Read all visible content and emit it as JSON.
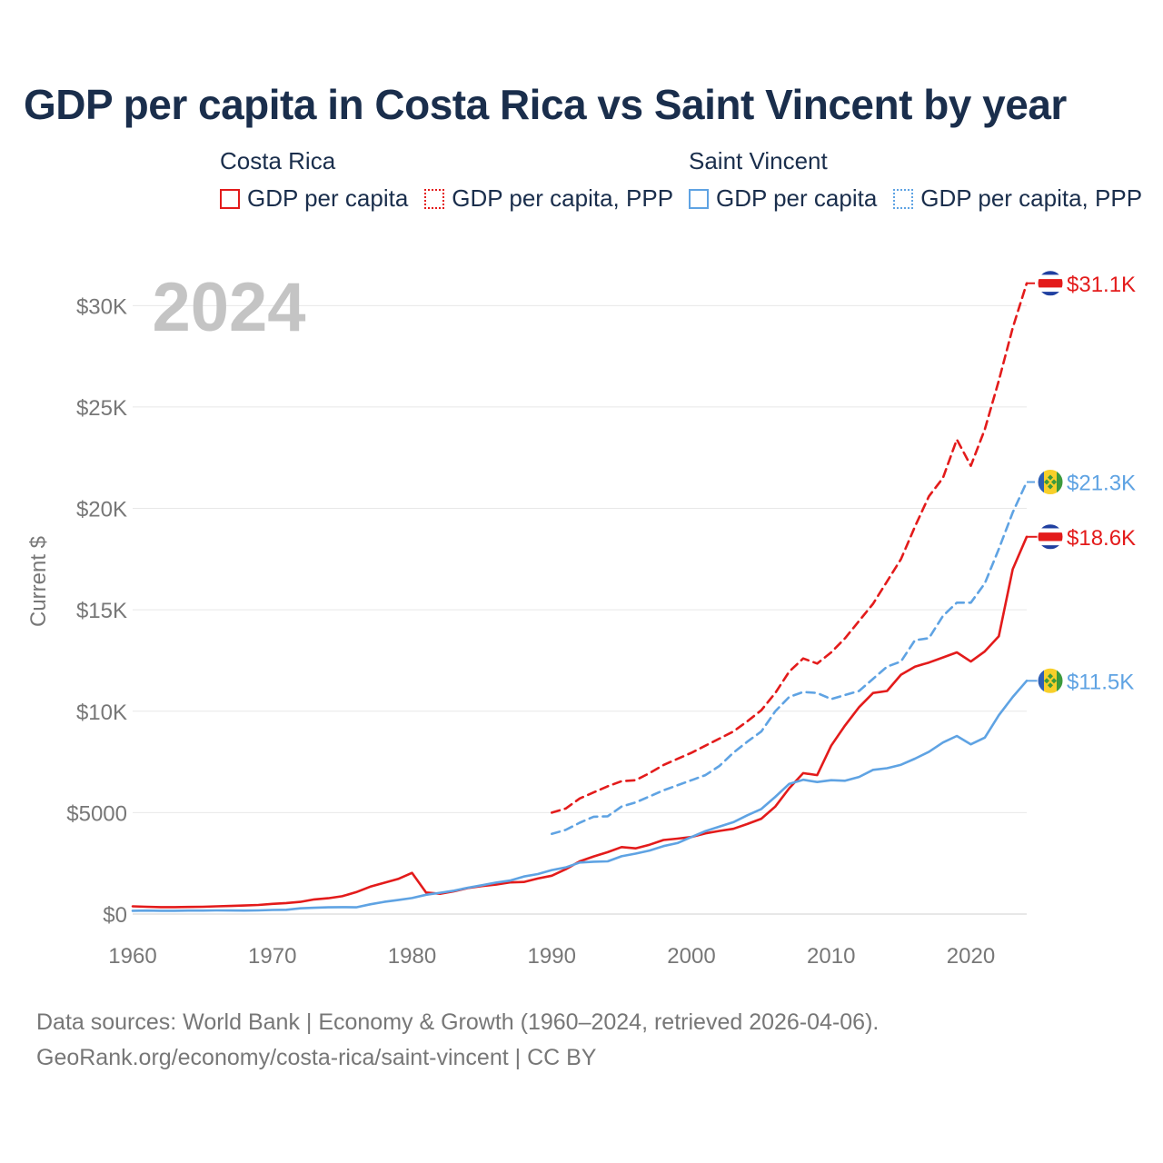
{
  "title": "GDP per capita in Costa Rica vs Saint Vincent by year",
  "legend": {
    "groups": [
      {
        "country": "Costa Rica",
        "items": [
          {
            "label": "GDP per capita",
            "style": "solid",
            "color": "#e31b1b"
          },
          {
            "label": "GDP per capita, PPP",
            "style": "dotted",
            "color": "#e31b1b"
          }
        ]
      },
      {
        "country": "Saint Vincent",
        "items": [
          {
            "label": "GDP per capita",
            "style": "solid",
            "color": "#5fa3e3"
          },
          {
            "label": "GDP per capita, PPP",
            "style": "dotted",
            "color": "#5fa3e3"
          }
        ]
      }
    ]
  },
  "year_watermark": "2024",
  "footer": {
    "line1": "Data sources: World Bank | Economy & Growth (1960–2024, retrieved 2026-04-06).",
    "line2": "GeoRank.org/economy/costa-rica/saint-vincent | CC BY"
  },
  "chart_data": {
    "type": "line",
    "title": "GDP per capita in Costa Rica vs Saint Vincent by year",
    "xlabel": "",
    "ylabel": "Current $",
    "xlim": [
      1960,
      2024
    ],
    "ylim": [
      0,
      31000
    ],
    "grid": true,
    "legend_position": "top",
    "x_ticks": [
      1960,
      1970,
      1980,
      1990,
      2000,
      2010,
      2020
    ],
    "x_tick_labels": [
      "1960",
      "1970",
      "1980",
      "1990",
      "2000",
      "2010",
      "2020"
    ],
    "y_ticks": [
      0,
      5000,
      10000,
      15000,
      20000,
      25000,
      30000
    ],
    "y_tick_labels": [
      "$0",
      "$5000",
      "$10K",
      "$15K",
      "$20K",
      "$25K",
      "$30K"
    ],
    "series": [
      {
        "name": "Costa Rica GDP per capita",
        "country": "Costa Rica",
        "color": "#e31b1b",
        "dash": false,
        "end_label": "$18.6K",
        "flag": "costa-rica-flag-icon",
        "x": [
          1960,
          1961,
          1962,
          1963,
          1964,
          1965,
          1966,
          1967,
          1968,
          1969,
          1970,
          1971,
          1972,
          1973,
          1974,
          1975,
          1976,
          1977,
          1978,
          1979,
          1980,
          1981,
          1982,
          1983,
          1984,
          1985,
          1986,
          1987,
          1988,
          1989,
          1990,
          1991,
          1992,
          1993,
          1994,
          1995,
          1996,
          1997,
          1998,
          1999,
          2000,
          2001,
          2002,
          2003,
          2004,
          2005,
          2006,
          2007,
          2008,
          2009,
          2010,
          2011,
          2012,
          2013,
          2014,
          2015,
          2016,
          2017,
          2018,
          2019,
          2020,
          2021,
          2022,
          2023,
          2024
        ],
        "y": [
          380,
          360,
          340,
          340,
          350,
          360,
          380,
          400,
          420,
          450,
          500,
          540,
          600,
          720,
          780,
          880,
          1080,
          1350,
          1540,
          1730,
          2030,
          1060,
          1000,
          1120,
          1280,
          1380,
          1450,
          1560,
          1580,
          1750,
          1890,
          2210,
          2600,
          2840,
          3050,
          3300,
          3240,
          3420,
          3650,
          3720,
          3800,
          3980,
          4100,
          4200,
          4440,
          4700,
          5300,
          6200,
          6950,
          6850,
          8300,
          9300,
          10200,
          10900,
          11000,
          11800,
          12200,
          12400,
          12650,
          12900,
          12450,
          12950,
          13700,
          17000,
          18600
        ]
      },
      {
        "name": "Costa Rica GDP per capita, PPP",
        "country": "Costa Rica",
        "color": "#e31b1b",
        "dash": true,
        "end_label": "$31.1K",
        "flag": "costa-rica-flag-icon",
        "x": [
          1990,
          1991,
          1992,
          1993,
          1994,
          1995,
          1996,
          1997,
          1998,
          1999,
          2000,
          2001,
          2002,
          2003,
          2004,
          2005,
          2006,
          2007,
          2008,
          2009,
          2010,
          2011,
          2012,
          2013,
          2014,
          2015,
          2016,
          2017,
          2018,
          2019,
          2020,
          2021,
          2022,
          2023,
          2024
        ],
        "y": [
          5000,
          5200,
          5700,
          6000,
          6300,
          6550,
          6600,
          6950,
          7350,
          7650,
          7950,
          8300,
          8650,
          9000,
          9500,
          10050,
          10900,
          11950,
          12600,
          12350,
          12900,
          13600,
          14450,
          15300,
          16400,
          17500,
          19100,
          20600,
          21500,
          23400,
          22100,
          23900,
          26300,
          28900,
          31100
        ]
      },
      {
        "name": "Saint Vincent GDP per capita",
        "country": "Saint Vincent",
        "color": "#5fa3e3",
        "dash": false,
        "end_label": "$11.5K",
        "flag": "saint-vincent-flag-icon",
        "x": [
          1960,
          1961,
          1962,
          1963,
          1964,
          1965,
          1966,
          1967,
          1968,
          1969,
          1970,
          1971,
          1972,
          1973,
          1974,
          1975,
          1976,
          1977,
          1978,
          1979,
          1980,
          1981,
          1982,
          1983,
          1984,
          1985,
          1986,
          1987,
          1988,
          1989,
          1990,
          1991,
          1992,
          1993,
          1994,
          1995,
          1996,
          1997,
          1998,
          1999,
          2000,
          2001,
          2002,
          2003,
          2004,
          2005,
          2006,
          2007,
          2008,
          2009,
          2010,
          2011,
          2012,
          2013,
          2014,
          2015,
          2016,
          2017,
          2018,
          2019,
          2020,
          2021,
          2022,
          2023,
          2024
        ],
        "y": [
          160,
          170,
          160,
          160,
          170,
          170,
          180,
          175,
          170,
          180,
          200,
          210,
          280,
          310,
          330,
          340,
          330,
          480,
          600,
          690,
          790,
          950,
          1050,
          1150,
          1300,
          1420,
          1550,
          1650,
          1850,
          1970,
          2170,
          2300,
          2540,
          2580,
          2600,
          2850,
          2980,
          3130,
          3350,
          3500,
          3800,
          4090,
          4310,
          4530,
          4870,
          5180,
          5780,
          6420,
          6620,
          6510,
          6600,
          6570,
          6760,
          7110,
          7190,
          7360,
          7660,
          8000,
          8460,
          8780,
          8370,
          8700,
          9800,
          10700,
          11500
        ]
      },
      {
        "name": "Saint Vincent GDP per capita, PPP",
        "country": "Saint Vincent",
        "color": "#5fa3e3",
        "dash": true,
        "end_label": "$21.3K",
        "flag": "saint-vincent-flag-icon",
        "x": [
          1990,
          1991,
          1992,
          1993,
          1994,
          1995,
          1996,
          1997,
          1998,
          1999,
          2000,
          2001,
          2002,
          2003,
          2004,
          2005,
          2006,
          2007,
          2008,
          2009,
          2010,
          2011,
          2012,
          2013,
          2014,
          2015,
          2016,
          2017,
          2018,
          2019,
          2020,
          2021,
          2022,
          2023,
          2024
        ],
        "y": [
          3950,
          4150,
          4500,
          4800,
          4820,
          5300,
          5500,
          5800,
          6100,
          6350,
          6600,
          6850,
          7300,
          7950,
          8500,
          9000,
          10000,
          10700,
          10950,
          10900,
          10600,
          10800,
          11000,
          11600,
          12200,
          12450,
          13500,
          13600,
          14700,
          15350,
          15350,
          16300,
          18000,
          19800,
          21300
        ]
      }
    ]
  }
}
